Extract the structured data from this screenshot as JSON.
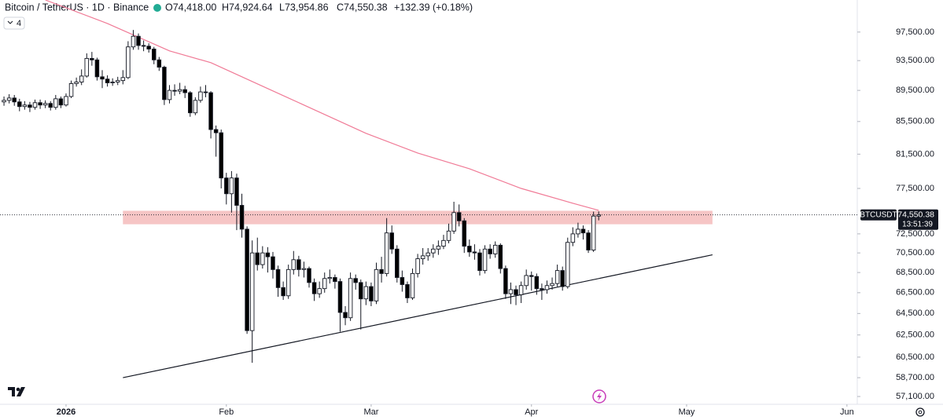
{
  "chart_data": {
    "type": "candlestick",
    "title": "Bitcoin / TetherUS · 1D · Binance",
    "ohlc_header": [
      "O74,418.00",
      "H74,924.64",
      "L73,954.86",
      "C74,550.38",
      "+132.39 (+0.18%)"
    ],
    "indicator_count": "4",
    "symbol_tag": "BTCUSDT",
    "countdown": "13:51:39",
    "last_price": {
      "value": 74550.38,
      "label": "74,550.38"
    },
    "log_scale": true,
    "up_color": "#ffffff",
    "down_color": "#000000",
    "xlim": [
      -0.77,
      165
    ],
    "xticks": [
      {
        "value": 12,
        "label": "2026"
      },
      {
        "value": 43,
        "label": "Feb"
      },
      {
        "value": 71,
        "label": "Mar"
      },
      {
        "value": 102,
        "label": "Apr"
      },
      {
        "value": 132,
        "label": "May"
      },
      {
        "value": 163,
        "label": "Jun"
      }
    ],
    "ylim": [
      56450,
      102200
    ],
    "yticks": [
      {
        "value": 97500,
        "label": "97,500.00"
      },
      {
        "value": 93500,
        "label": "93,500.00"
      },
      {
        "value": 89500,
        "label": "89,500.00"
      },
      {
        "value": 85500,
        "label": "85,500.00"
      },
      {
        "value": 81500,
        "label": "81,500.00"
      },
      {
        "value": 77500,
        "label": "77,500.00"
      },
      {
        "value": 72500,
        "label": "72,500.00"
      },
      {
        "value": 70500,
        "label": "70,500.00"
      },
      {
        "value": 68500,
        "label": "68,500.00"
      },
      {
        "value": 66500,
        "label": "66,500.00"
      },
      {
        "value": 64500,
        "label": "64,500.00"
      },
      {
        "value": 62500,
        "label": "62,500.00"
      },
      {
        "value": 60500,
        "label": "60,500.00"
      },
      {
        "value": 58700,
        "label": "58,700.00"
      },
      {
        "value": 57100,
        "label": "57,100.00"
      }
    ],
    "open": [
      88000,
      88200,
      88500,
      88000,
      87400,
      87600,
      87300,
      87900,
      87600,
      87800,
      87300,
      88400,
      87600,
      88700,
      90400,
      90600,
      91400,
      93800,
      93600,
      91300,
      91000,
      90500,
      90600,
      90800,
      91200,
      95400,
      96900,
      95600,
      95500,
      95100,
      93600,
      92600,
      88300,
      89500,
      89400,
      89600,
      89200,
      86600,
      88200,
      89300,
      89200,
      84500,
      84100,
      78700,
      76900,
      78700,
      75600,
      73000,
      62900,
      70500,
      69300,
      70500,
      70100,
      68800,
      67000,
      66200,
      68800,
      69800,
      68800,
      68900,
      67500,
      66400,
      66900,
      67900,
      68000,
      67600,
      64600,
      64100,
      67900,
      67500,
      65900,
      67100,
      65700,
      68800,
      68400,
      72600,
      70900,
      68000,
      67300,
      66000,
      68400,
      69900,
      70200,
      70500,
      70900,
      71200,
      71800,
      72800,
      74800,
      73900,
      71200,
      70600,
      70500,
      68700,
      70900,
      70400,
      71300,
      68900,
      66400,
      66800,
      66300,
      67200,
      68200,
      68100,
      66900,
      66800,
      67200,
      67400,
      68700,
      67100,
      71600,
      72500,
      73000,
      72600,
      70800,
      74418
    ],
    "high": [
      88700,
      89000,
      88900,
      88400,
      88100,
      88000,
      88300,
      88300,
      88200,
      88100,
      88900,
      88700,
      89100,
      90800,
      91200,
      92300,
      94500,
      94700,
      93900,
      92200,
      91500,
      91100,
      91300,
      92200,
      96200,
      97800,
      97300,
      96300,
      95900,
      95400,
      94000,
      92800,
      90200,
      90300,
      90500,
      90100,
      89400,
      88600,
      90000,
      90200,
      89400,
      85000,
      84500,
      79300,
      79500,
      79200,
      76900,
      73300,
      71800,
      72100,
      71200,
      71100,
      70600,
      69200,
      67600,
      69300,
      70700,
      70200,
      69600,
      69100,
      67900,
      67600,
      68500,
      68800,
      68300,
      67900,
      65200,
      68500,
      68300,
      67800,
      67600,
      67500,
      69500,
      70100,
      74200,
      73400,
      71300,
      68700,
      67600,
      68900,
      70400,
      71000,
      71000,
      71400,
      71800,
      72400,
      73600,
      76000,
      75700,
      74200,
      71900,
      71400,
      70900,
      71300,
      71400,
      71700,
      71500,
      69200,
      67500,
      67200,
      67600,
      68800,
      68600,
      68400,
      67400,
      67700,
      68000,
      69300,
      69100,
      72100,
      73200,
      73700,
      73400,
      72900,
      74900,
      74924.64
    ],
    "low": [
      87500,
      87800,
      87500,
      86800,
      87000,
      86700,
      87000,
      87100,
      87200,
      86900,
      87000,
      87200,
      87400,
      88500,
      90000,
      90200,
      91200,
      92800,
      90800,
      89800,
      90000,
      90100,
      90200,
      90300,
      91000,
      95000,
      95000,
      94800,
      94600,
      93000,
      92100,
      87600,
      87800,
      88800,
      89000,
      88500,
      86100,
      86300,
      87900,
      88600,
      83400,
      81200,
      77500,
      75700,
      74800,
      72900,
      72100,
      62600,
      60000,
      68700,
      68900,
      68500,
      67900,
      66100,
      65800,
      65900,
      68300,
      68100,
      68000,
      67000,
      65700,
      66000,
      66500,
      67400,
      66900,
      62800,
      63400,
      63800,
      66800,
      63000,
      65300,
      65200,
      65400,
      67500,
      68100,
      70400,
      67500,
      66600,
      65500,
      65800,
      68000,
      69300,
      69700,
      70000,
      70300,
      70900,
      71500,
      72500,
      73300,
      70500,
      70100,
      69800,
      68200,
      68400,
      69900,
      70000,
      68400,
      65900,
      65400,
      65300,
      65500,
      66800,
      66700,
      66300,
      65800,
      66400,
      66800,
      67100,
      66700,
      66900,
      71200,
      72100,
      71900,
      70500,
      70600,
      73954.86
    ],
    "close": [
      88200,
      88500,
      88000,
      87400,
      87600,
      87300,
      87900,
      87600,
      87800,
      87300,
      88400,
      87600,
      88700,
      90400,
      90600,
      91400,
      93800,
      93600,
      91300,
      91000,
      90500,
      90600,
      90800,
      91200,
      95400,
      96900,
      95600,
      95500,
      95100,
      93600,
      92600,
      88300,
      89500,
      89400,
      89600,
      89200,
      86600,
      88200,
      89300,
      89200,
      84500,
      84100,
      78700,
      76900,
      78700,
      75600,
      73000,
      62900,
      70500,
      69300,
      70500,
      70100,
      68800,
      67000,
      66200,
      68800,
      69800,
      68800,
      68900,
      67500,
      66400,
      66900,
      67900,
      68000,
      67600,
      64600,
      64100,
      67900,
      67500,
      65900,
      67100,
      65700,
      68800,
      68400,
      72600,
      70900,
      68000,
      67300,
      66000,
      68400,
      69900,
      70200,
      70500,
      70900,
      71200,
      71800,
      72800,
      74800,
      73900,
      71200,
      70600,
      70500,
      68700,
      70900,
      70400,
      71300,
      68900,
      66400,
      66800,
      66300,
      67200,
      68200,
      68100,
      66900,
      66800,
      67200,
      67400,
      68700,
      67100,
      71600,
      72500,
      73000,
      72600,
      70800,
      74418,
      74550.38
    ],
    "moving_average": {
      "color": "#f07a96",
      "x": [
        8,
        20,
        32,
        40,
        50,
        60,
        70,
        80,
        90,
        100,
        110,
        115
      ],
      "values": [
        102200,
        98740,
        94840,
        93220,
        90050,
        86990,
        84030,
        81640,
        79780,
        77500,
        75830,
        75050
      ]
    },
    "resistance_zone": {
      "color": "#f4b6b6",
      "x": [
        23,
        137
      ],
      "values": [
        73530,
        75000
      ]
    },
    "trendline": {
      "color": "#131722",
      "x": [
        23,
        137
      ],
      "values": [
        58700,
        70300
      ]
    }
  }
}
